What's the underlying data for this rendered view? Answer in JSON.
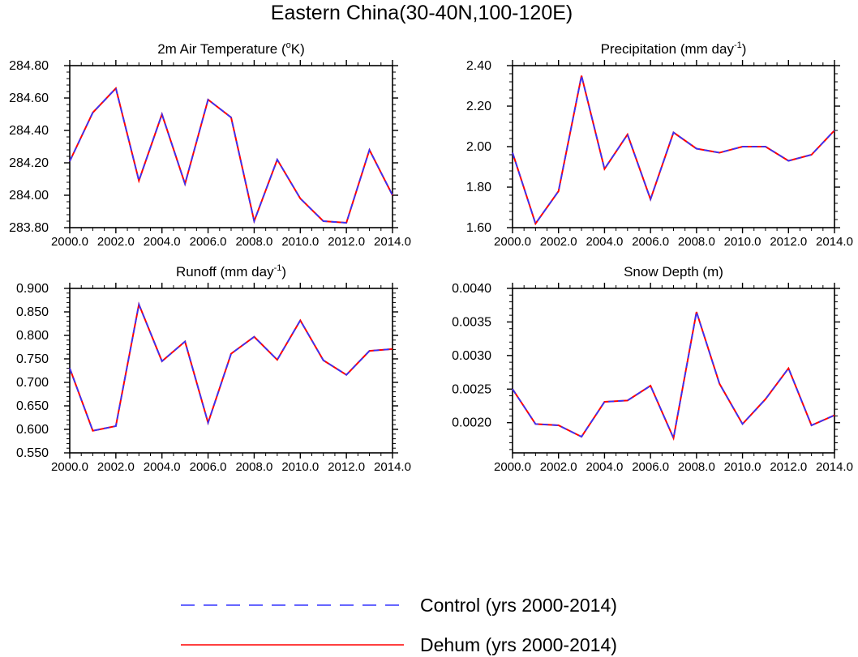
{
  "main_title": "Eastern China(30-40N,100-120E)",
  "colors": {
    "control": "#3333ff",
    "dehum": "#ff0000",
    "axis": "#000000"
  },
  "legend": [
    {
      "label": "Control (yrs 2000-2014)",
      "color": "#3333ff",
      "style": "dashed"
    },
    {
      "label": "Dehum (yrs 2000-2014)",
      "color": "#ff0000",
      "style": "solid"
    }
  ],
  "chart_data": [
    {
      "type": "line",
      "title": "2m Air Temperature (",
      "title_sup": "o",
      "title_tail": "K)",
      "x": [
        2000,
        2001,
        2002,
        2003,
        2004,
        2005,
        2006,
        2007,
        2008,
        2009,
        2010,
        2011,
        2012,
        2013,
        2014
      ],
      "xlim": [
        2000,
        2014
      ],
      "x_ticks": [
        2000,
        2002,
        2004,
        2006,
        2008,
        2010,
        2012,
        2014
      ],
      "x_tick_labels": [
        "2000.0",
        "2002.0",
        "2004.0",
        "2006.0",
        "2008.0",
        "2010.0",
        "2012.0",
        "2014.0"
      ],
      "ylim": [
        283.8,
        284.8
      ],
      "y_ticks": [
        283.8,
        284.0,
        284.2,
        284.4,
        284.6,
        284.8
      ],
      "y_tick_labels": [
        "283.80",
        "284.00",
        "284.20",
        "284.40",
        "284.60",
        "284.80"
      ],
      "series": [
        {
          "name": "Control (yrs 2000-2014)",
          "values": [
            284.21,
            284.51,
            284.66,
            284.09,
            284.5,
            284.07,
            284.59,
            284.48,
            283.84,
            284.22,
            283.98,
            283.84,
            283.83,
            284.28,
            284.0
          ]
        },
        {
          "name": "Dehum (yrs 2000-2014)",
          "values": [
            284.21,
            284.51,
            284.66,
            284.09,
            284.5,
            284.07,
            284.59,
            284.48,
            283.84,
            284.22,
            283.98,
            283.84,
            283.83,
            284.28,
            284.0
          ]
        }
      ]
    },
    {
      "type": "line",
      "title": "Precipitation (mm day",
      "title_sup": "-1",
      "title_tail": ")",
      "x": [
        2000,
        2001,
        2002,
        2003,
        2004,
        2005,
        2006,
        2007,
        2008,
        2009,
        2010,
        2011,
        2012,
        2013,
        2014
      ],
      "xlim": [
        2000,
        2014
      ],
      "x_ticks": [
        2000,
        2002,
        2004,
        2006,
        2008,
        2010,
        2012,
        2014
      ],
      "x_tick_labels": [
        "2000.0",
        "2002.0",
        "2004.0",
        "2006.0",
        "2008.0",
        "2010.0",
        "2012.0",
        "2014.0"
      ],
      "ylim": [
        1.6,
        2.4
      ],
      "y_ticks": [
        1.6,
        1.8,
        2.0,
        2.2,
        2.4
      ],
      "y_tick_labels": [
        "1.60",
        "1.80",
        "2.00",
        "2.20",
        "2.40"
      ],
      "series": [
        {
          "name": "Control (yrs 2000-2014)",
          "values": [
            1.97,
            1.62,
            1.78,
            2.35,
            1.89,
            2.06,
            1.74,
            2.07,
            1.99,
            1.97,
            2.0,
            2.0,
            1.93,
            1.96,
            2.08
          ]
        },
        {
          "name": "Dehum (yrs 2000-2014)",
          "values": [
            1.97,
            1.62,
            1.78,
            2.35,
            1.89,
            2.06,
            1.74,
            2.07,
            1.99,
            1.97,
            2.0,
            2.0,
            1.93,
            1.96,
            2.08
          ]
        }
      ]
    },
    {
      "type": "line",
      "title": "Runoff (mm day",
      "title_sup": "-1",
      "title_tail": ")",
      "x": [
        2000,
        2001,
        2002,
        2003,
        2004,
        2005,
        2006,
        2007,
        2008,
        2009,
        2010,
        2011,
        2012,
        2013,
        2014
      ],
      "xlim": [
        2000,
        2014
      ],
      "x_ticks": [
        2000,
        2002,
        2004,
        2006,
        2008,
        2010,
        2012,
        2014
      ],
      "x_tick_labels": [
        "2000.0",
        "2002.0",
        "2004.0",
        "2006.0",
        "2008.0",
        "2010.0",
        "2012.0",
        "2014.0"
      ],
      "ylim": [
        0.55,
        0.9
      ],
      "y_ticks": [
        0.55,
        0.6,
        0.65,
        0.7,
        0.75,
        0.8,
        0.85,
        0.9
      ],
      "y_tick_labels": [
        "0.550",
        "0.600",
        "0.650",
        "0.700",
        "0.750",
        "0.800",
        "0.850",
        "0.900"
      ],
      "series": [
        {
          "name": "Control (yrs 2000-2014)",
          "values": [
            0.73,
            0.597,
            0.607,
            0.866,
            0.745,
            0.787,
            0.614,
            0.761,
            0.797,
            0.748,
            0.832,
            0.747,
            0.716,
            0.767,
            0.771
          ]
        },
        {
          "name": "Dehum (yrs 2000-2014)",
          "values": [
            0.73,
            0.597,
            0.607,
            0.866,
            0.745,
            0.787,
            0.614,
            0.761,
            0.797,
            0.748,
            0.832,
            0.747,
            0.716,
            0.767,
            0.771
          ]
        }
      ]
    },
    {
      "type": "line",
      "title": "Snow Depth (m)",
      "title_sup": "",
      "title_tail": "",
      "x": [
        2000,
        2001,
        2002,
        2003,
        2004,
        2005,
        2006,
        2007,
        2008,
        2009,
        2010,
        2011,
        2012,
        2013,
        2014
      ],
      "xlim": [
        2000,
        2014
      ],
      "x_ticks": [
        2000,
        2002,
        2004,
        2006,
        2008,
        2010,
        2012,
        2014
      ],
      "x_tick_labels": [
        "2000.0",
        "2002.0",
        "2004.0",
        "2006.0",
        "2008.0",
        "2010.0",
        "2012.0",
        "2014.0"
      ],
      "ylim": [
        0.00155,
        0.004
      ],
      "y_ticks": [
        0.002,
        0.0025,
        0.003,
        0.0035,
        0.004
      ],
      "y_tick_labels": [
        "0.0020",
        "0.0025",
        "0.0030",
        "0.0035",
        "0.0040"
      ],
      "series": [
        {
          "name": "Control (yrs 2000-2014)",
          "values": [
            0.0025,
            0.00198,
            0.00196,
            0.00179,
            0.00231,
            0.00233,
            0.00255,
            0.00177,
            0.00365,
            0.00258,
            0.00198,
            0.00235,
            0.00281,
            0.00196,
            0.00211
          ]
        },
        {
          "name": "Dehum (yrs 2000-2014)",
          "values": [
            0.0025,
            0.00198,
            0.00196,
            0.00179,
            0.00231,
            0.00233,
            0.00255,
            0.00177,
            0.00365,
            0.00258,
            0.00198,
            0.00235,
            0.00281,
            0.00196,
            0.00211
          ]
        }
      ]
    }
  ]
}
